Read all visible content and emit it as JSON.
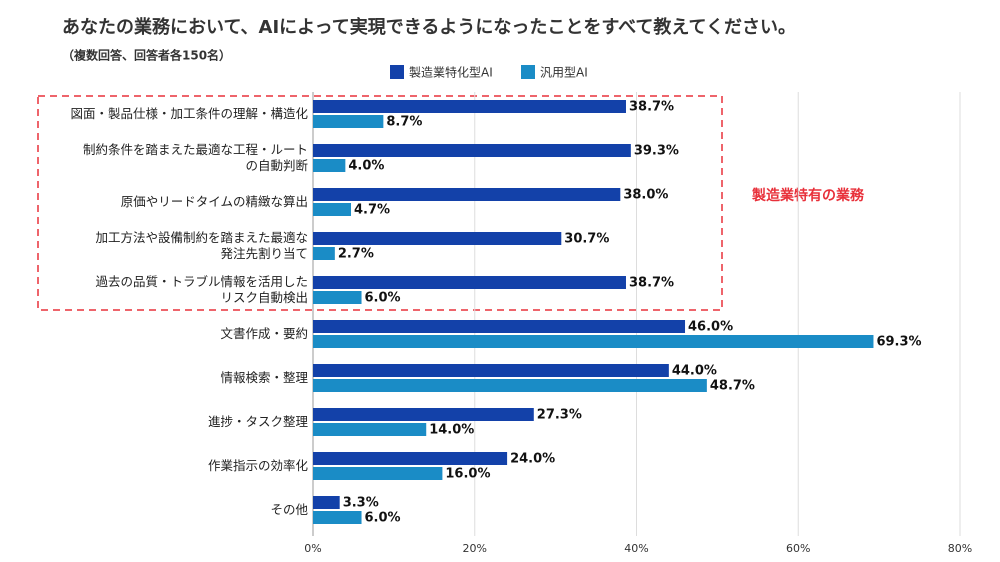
{
  "chart_data": {
    "type": "bar",
    "orientation": "horizontal",
    "title": "あなたの業務において、AIによって実現できるようになったことをすべて教えてください。",
    "subtitle": "（複数回答、回答者各150名）",
    "annotation": "製造業特有の業務",
    "categories": [
      "図面・製品仕様・加工条件の理解・構造化",
      "制約条件を踏まえた最適な工程・ルート\nの自動判断",
      "原価やリードタイムの精緻な算出",
      "加工方法や設備制約を踏まえた最適な\n発注先割り当て",
      "過去の品質・トラブル情報を活用した\nリスク自動検出",
      "文書作成・要約",
      "情報検索・整理",
      "進捗・タスク整理",
      "作業指示の効率化",
      "その他"
    ],
    "series": [
      {
        "name": "製造業特化型AI",
        "color": "#1341a9",
        "values": [
          38.7,
          39.3,
          38.0,
          30.7,
          38.7,
          46.0,
          44.0,
          27.3,
          24.0,
          3.3
        ],
        "value_labels": [
          "38.7%",
          "39.3%",
          "38.0%",
          "30.7%",
          "38.7%",
          "46.0%",
          "44.0%",
          "27.3%",
          "24.0%",
          "3.3%"
        ]
      },
      {
        "name": "汎用型AI",
        "color": "#1a8cc6",
        "values": [
          8.7,
          4.0,
          4.7,
          2.7,
          6.0,
          69.3,
          48.7,
          14.0,
          16.0,
          6.0
        ],
        "value_labels": [
          "8.7%",
          "4.0%",
          "4.7%",
          "2.7%",
          "6.0%",
          "69.3%",
          "48.7%",
          "14.0%",
          "16.0%",
          "6.0%"
        ]
      }
    ],
    "xlim": [
      0,
      80
    ],
    "xticks": [
      {
        "value": 0,
        "label": "0%"
      },
      {
        "value": 20,
        "label": "20%"
      },
      {
        "value": 40,
        "label": "40%"
      },
      {
        "value": 60,
        "label": "60%"
      },
      {
        "value": 80,
        "label": "80%"
      }
    ],
    "grid": true
  }
}
